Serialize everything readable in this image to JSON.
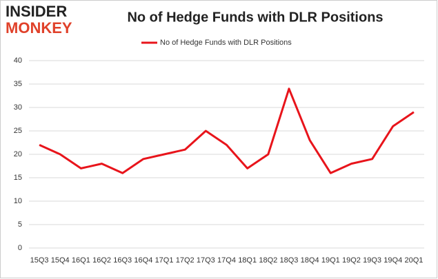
{
  "chart_data": {
    "type": "line",
    "title": "No of Hedge Funds with DLR Positions",
    "logo": [
      "INSIDER",
      "MONKEY"
    ],
    "categories": [
      "15Q3",
      "15Q4",
      "16Q1",
      "16Q2",
      "16Q3",
      "16Q4",
      "17Q1",
      "17Q2",
      "17Q3",
      "17Q4",
      "18Q1",
      "18Q2",
      "18Q3",
      "18Q4",
      "19Q1",
      "19Q2",
      "19Q3",
      "19Q4",
      "20Q1"
    ],
    "series": [
      {
        "name": "No of Hedge Funds with DLR Positions",
        "color": "#e8141b",
        "values": [
          22,
          20,
          17,
          18,
          16,
          19,
          20,
          21,
          25,
          22,
          17,
          20,
          34,
          23,
          16,
          18,
          19,
          26,
          29
        ]
      }
    ],
    "ylim": [
      0,
      40
    ],
    "yticks": [
      0,
      5,
      10,
      15,
      20,
      25,
      30,
      35,
      40
    ],
    "grid": true
  }
}
